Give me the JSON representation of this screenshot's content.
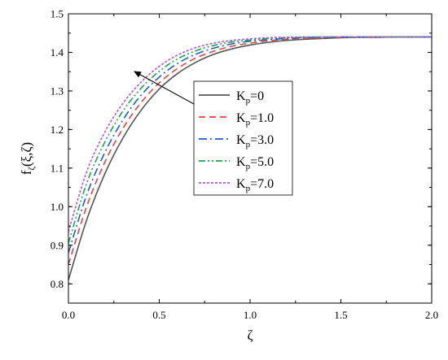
{
  "chart_data": {
    "type": "line",
    "xlabel": "ζ",
    "ylabel": "f_ζ(ξ,ζ)",
    "ylabel_main": "f",
    "ylabel_sub": "ζ",
    "ylabel_rest": "(ξ,ζ)",
    "xlim": [
      0,
      2.0
    ],
    "ylim": [
      0.75,
      1.5
    ],
    "x_ticks": [
      0.0,
      0.5,
      1.0,
      1.5,
      2.0
    ],
    "x_tick_labels": [
      "0.0",
      "0.5",
      "1.0",
      "1.5",
      "2.0"
    ],
    "y_ticks": [
      0.8,
      0.9,
      1.0,
      1.1,
      1.2,
      1.3,
      1.4,
      1.5
    ],
    "y_tick_labels": [
      "0.8",
      "0.9",
      "1.0",
      "1.1",
      "1.2",
      "1.3",
      "1.4",
      "1.5"
    ],
    "grid": false,
    "legend_position": "center-right",
    "annotation": "arrow pointing up-left indicating increasing Kp",
    "x": [
      0,
      0.1,
      0.2,
      0.3,
      0.4,
      0.5,
      0.6,
      0.7,
      0.8,
      0.9,
      1.0,
      1.1,
      1.2,
      1.3,
      1.4,
      1.5,
      1.6,
      1.7,
      1.8,
      1.9,
      2.0
    ],
    "series": [
      {
        "name": "Kp=0",
        "legend_main": "K",
        "legend_sub": "p",
        "legend_rest": "=0",
        "color": "#555555",
        "dash": "solid",
        "values": [
          0.81,
          0.965,
          1.085,
          1.178,
          1.25,
          1.305,
          1.345,
          1.374,
          1.395,
          1.409,
          1.419,
          1.426,
          1.431,
          1.434,
          1.436,
          1.438,
          1.439,
          1.439,
          1.44,
          1.44,
          1.44
        ]
      },
      {
        "name": "Kp=1.0",
        "legend_main": "K",
        "legend_sub": "p",
        "legend_rest": "=1.0",
        "color": "#e8413c",
        "dash": "dashed",
        "values": [
          0.85,
          1.0,
          1.115,
          1.203,
          1.27,
          1.321,
          1.358,
          1.385,
          1.403,
          1.416,
          1.424,
          1.43,
          1.434,
          1.436,
          1.438,
          1.439,
          1.44,
          1.44,
          1.44,
          1.44,
          1.44
        ]
      },
      {
        "name": "Kp=3.0",
        "legend_main": "K",
        "legend_sub": "p",
        "legend_rest": "=3.0",
        "color": "#1f5bd1",
        "dash": "dashdot",
        "values": [
          0.88,
          1.03,
          1.14,
          1.225,
          1.289,
          1.336,
          1.371,
          1.395,
          1.411,
          1.422,
          1.429,
          1.433,
          1.436,
          1.438,
          1.439,
          1.44,
          1.44,
          1.44,
          1.44,
          1.44,
          1.44
        ]
      },
      {
        "name": "Kp=5.0",
        "legend_main": "K",
        "legend_sub": "p",
        "legend_rest": "=5.0",
        "color": "#1aa84a",
        "dash": "dashdotdot",
        "values": [
          0.905,
          1.06,
          1.167,
          1.248,
          1.307,
          1.351,
          1.383,
          1.404,
          1.418,
          1.427,
          1.432,
          1.436,
          1.438,
          1.439,
          1.44,
          1.44,
          1.44,
          1.44,
          1.44,
          1.44,
          1.44
        ]
      },
      {
        "name": "Kp=7.0",
        "legend_main": "K",
        "legend_sub": "p",
        "legend_rest": "=7.0",
        "color": "#b455d6",
        "dash": "dotted",
        "values": [
          0.935,
          1.09,
          1.193,
          1.268,
          1.323,
          1.364,
          1.393,
          1.412,
          1.424,
          1.431,
          1.435,
          1.438,
          1.439,
          1.44,
          1.44,
          1.44,
          1.44,
          1.44,
          1.44,
          1.44,
          1.44
        ]
      }
    ]
  }
}
